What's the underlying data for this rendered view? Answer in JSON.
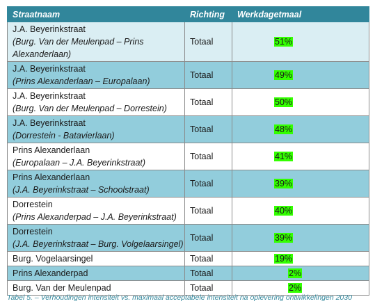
{
  "table": {
    "headers": [
      "Straatnaam",
      "Richting",
      "Werkdagetmaal"
    ],
    "rows": [
      {
        "name": "J.A. Beyerinkstraat",
        "sub": "(Burg. Van der Meulenpad – Prins Alexanderlaan)",
        "richting": "Totaal",
        "value": "51%",
        "shade": "light"
      },
      {
        "name": "J.A. Beyerinkstraat",
        "sub": "(Prins Alexanderlaan – Europalaan)",
        "richting": "Totaal",
        "value": "49%",
        "shade": "dark"
      },
      {
        "name": "J.A. Beyerinkstraat",
        "sub": "(Burg. Van der Meulenpad – Dorrestein)",
        "richting": "Totaal",
        "value": "50%",
        "shade": "white"
      },
      {
        "name": "J.A. Beyerinkstraat",
        "sub": "(Dorrestein - Batavierlaan)",
        "richting": "Totaal",
        "value": "48%",
        "shade": "dark"
      },
      {
        "name": "Prins Alexanderlaan",
        "sub": "(Europalaan – J.A. Beyerinkstraat)",
        "richting": "Totaal",
        "value": "41%",
        "shade": "white"
      },
      {
        "name": "Prins Alexanderlaan",
        "sub": "(J.A. Beyerinkstraat – Schoolstraat)",
        "richting": "Totaal",
        "value": "39%",
        "shade": "dark"
      },
      {
        "name": "Dorrestein",
        "sub": "(Prins Alexanderpad – J.A. Beyerinkstraat)",
        "richting": "Totaal",
        "value": "40%",
        "shade": "white"
      },
      {
        "name": "Dorrestein",
        "sub": "(J.A. Beyerinkstraat – Burg. Volgelaarsingel)",
        "richting": "Totaal",
        "value": "39%",
        "shade": "dark"
      },
      {
        "name": "Burg. Vogelaarsingel",
        "sub": "",
        "richting": "Totaal",
        "value": "19%",
        "shade": "white"
      },
      {
        "name": "Prins Alexanderpad",
        "sub": "",
        "richting": "Totaal",
        "value": "2%",
        "shade": "dark"
      },
      {
        "name": "Burg. Van der Meulenpad",
        "sub": "",
        "richting": "Totaal",
        "value": "2%",
        "shade": "white"
      }
    ]
  },
  "caption": "Tabel 5. – Verhoudingen intensiteit vs. maximaal acceptabele intensiteit na oplevering ontwikkelingen 2030",
  "colors": {
    "header": "#31869b",
    "row_light": "#daeef3",
    "row_dark": "#92cddc",
    "highlight": "#33ff00"
  }
}
